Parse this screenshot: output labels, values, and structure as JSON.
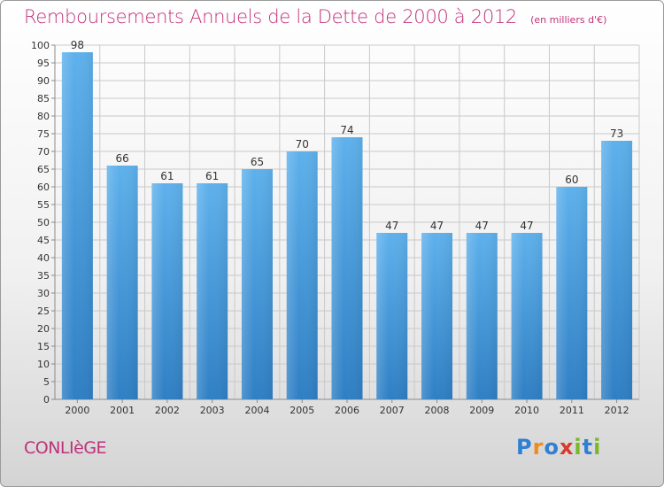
{
  "title": "Remboursements Annuels de la Dette de 2000 à 2012",
  "unit_label": "(en milliers d'€)",
  "commune": "CONLIèGE",
  "logo": {
    "text": "Proxiti",
    "letters": [
      {
        "ch": "P",
        "color": "#2f7fd3"
      },
      {
        "ch": "r",
        "color": "#f28a1c"
      },
      {
        "ch": "o",
        "color": "#2f7fd3"
      },
      {
        "ch": "x",
        "color": "#d93a2b"
      },
      {
        "ch": "i",
        "color": "#79b829"
      },
      {
        "ch": "t",
        "color": "#2f7fd3"
      },
      {
        "ch": "i",
        "color": "#79b829"
      }
    ]
  },
  "colors": {
    "title": "#c0307a",
    "bar_top": "#5eb1ec",
    "bar_bottom": "#2f7fc4",
    "grid": "#c9c9c9"
  },
  "chart_data": {
    "type": "bar",
    "categories": [
      "2000",
      "2001",
      "2002",
      "2003",
      "2004",
      "2005",
      "2006",
      "2007",
      "2008",
      "2009",
      "2010",
      "2011",
      "2012"
    ],
    "values": [
      98,
      66,
      61,
      61,
      65,
      70,
      74,
      47,
      47,
      47,
      47,
      60,
      73
    ],
    "ylim": [
      0,
      100
    ],
    "yticks": [
      0,
      5,
      10,
      15,
      20,
      25,
      30,
      35,
      40,
      45,
      50,
      55,
      60,
      65,
      70,
      75,
      80,
      85,
      90,
      95,
      100
    ],
    "grid": true,
    "data_labels": true
  }
}
